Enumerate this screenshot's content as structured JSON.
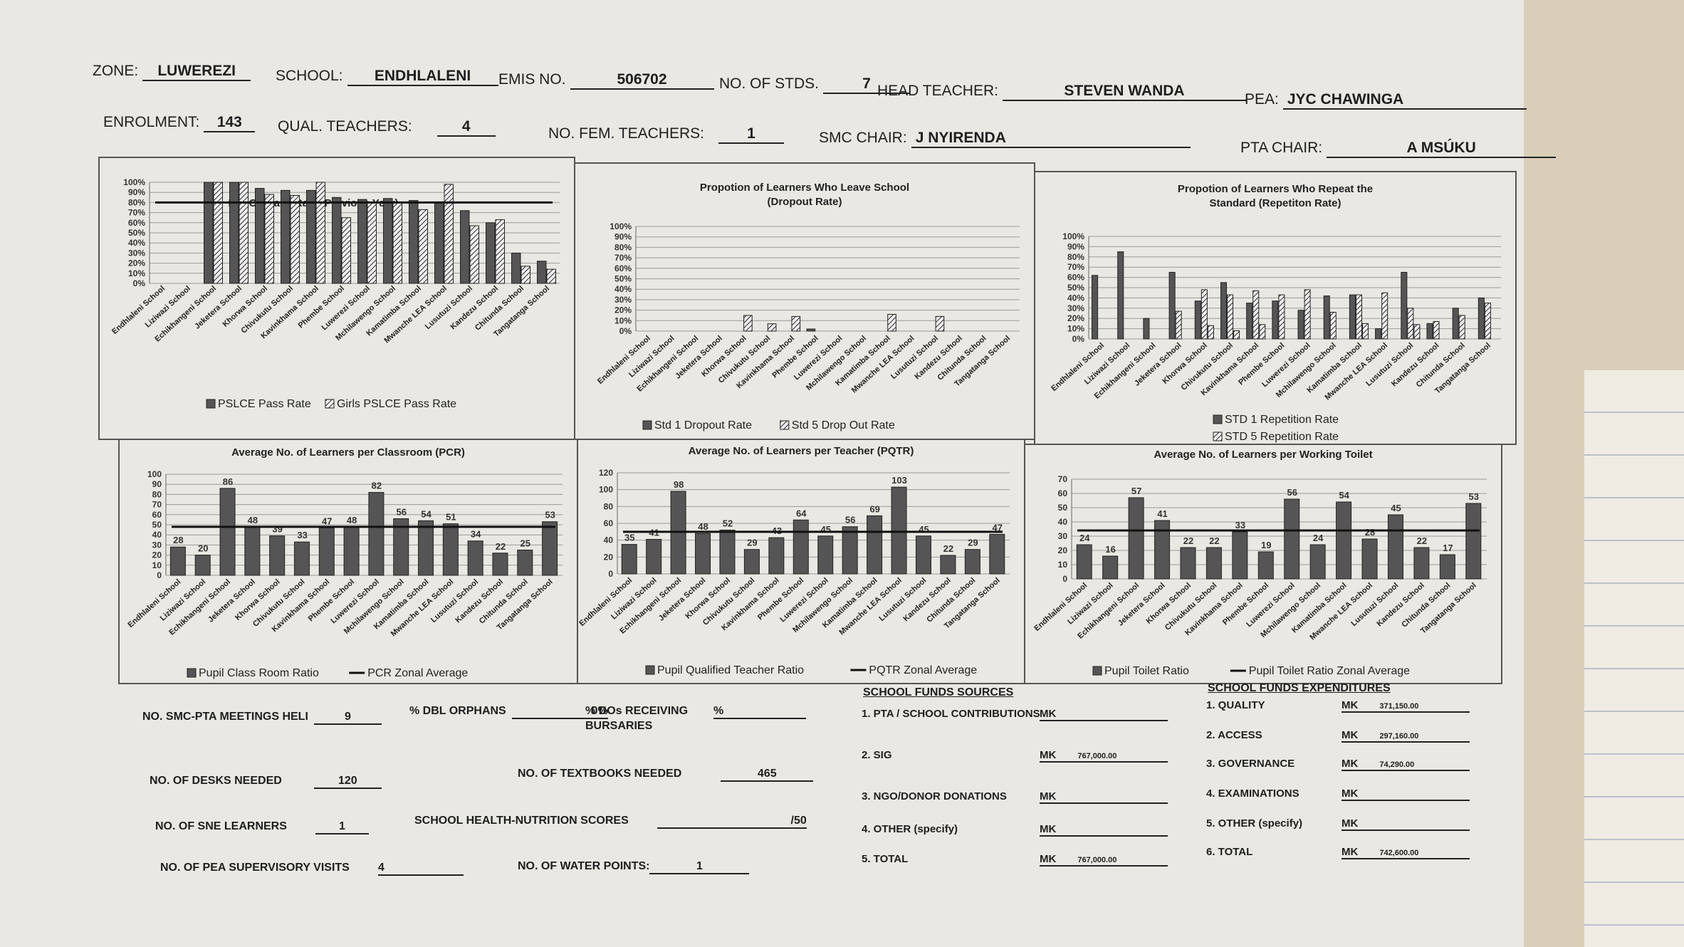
{
  "header": {
    "zone_label": "ZONE:",
    "zone": "LUWEREZI",
    "school_label": "SCHOOL:",
    "school": "ENDHLALENI",
    "emis_label": "EMIS NO.",
    "emis": "506702",
    "stds_label": "NO. OF STDS.",
    "stds": "7",
    "head_label": "HEAD TEACHER:",
    "head": "STEVEN WANDA",
    "pea_label": "PEA:",
    "pea": "JYC CHAWINGA",
    "enrol_label": "ENROLMENT:",
    "enrol": "143",
    "qual_label": "QUAL. TEACHERS:",
    "qual": "4",
    "fem_label": "NO. FEM. TEACHERS:",
    "fem": "1",
    "smc_label": "SMC CHAIR:",
    "smc": "J NYIRENDA",
    "pta_label": "PTA CHAIR:",
    "pta": "A MSÚKU"
  },
  "schools": [
    "Endhlaleni School",
    "Liziwazi School",
    "Echikhangeni School",
    "Jeketera School",
    "Khorwa School",
    "Chivukutu School",
    "Kavinkhama School",
    "Phembe School",
    "Luwerezi School",
    "Mchilawengo School",
    "Kamatimba School",
    "Mwanche LEA School",
    "Lusutuzi School",
    "Kandezu School",
    "Chitunda School",
    "Tangatanga School"
  ],
  "chart_data": [
    {
      "type": "bar",
      "title": "PSLCE Pass Rate (Previous Year)",
      "ylim": [
        0,
        100
      ],
      "yticks": [
        "0%",
        "10%",
        "20%",
        "30%",
        "40%",
        "50%",
        "60%",
        "70%",
        "80%",
        "90%",
        "100%"
      ],
      "series": [
        {
          "name": "PSLCE Pass Rate",
          "values": [
            null,
            null,
            100,
            100,
            94,
            92,
            92,
            85,
            83,
            84,
            82,
            80,
            72,
            60,
            30,
            22
          ]
        },
        {
          "name": "Girls PSLCE Pass Rate",
          "values": [
            null,
            null,
            100,
            100,
            88,
            87,
            100,
            65,
            80,
            80,
            73,
            98,
            57,
            63,
            17,
            14
          ]
        }
      ],
      "avg_line": 80,
      "legend": "bottom"
    },
    {
      "type": "bar",
      "title": "Propotion of Learners Who Leave School",
      "subtitle": "(Dropout Rate)",
      "ylim": [
        0,
        100
      ],
      "yticks": [
        "0%",
        "10%",
        "20%",
        "30%",
        "40%",
        "50%",
        "60%",
        "70%",
        "80%",
        "90%",
        "100%"
      ],
      "series": [
        {
          "name": "Std 1 Dropout Rate",
          "values": [
            0,
            0,
            0,
            0,
            0,
            0,
            0,
            2,
            0,
            0,
            0,
            0,
            0,
            0,
            0,
            0
          ]
        },
        {
          "name": "Std 5 Drop Out Rate",
          "values": [
            0,
            0,
            0,
            0,
            15,
            7,
            14,
            0,
            0,
            0,
            16,
            0,
            14,
            0,
            0,
            0
          ]
        }
      ],
      "legend": "bottom"
    },
    {
      "type": "bar",
      "title": "Propotion of Learners Who Repeat  the",
      "subtitle": "Standard (Repetiton Rate)",
      "ylim": [
        0,
        100
      ],
      "yticks": [
        "0%",
        "10%",
        "20%",
        "30%",
        "40%",
        "50%",
        "60%",
        "70%",
        "80%",
        "90%",
        "100%"
      ],
      "series": [
        {
          "name": "STD 1 Repetition Rate",
          "values": [
            62,
            85,
            20,
            65,
            37,
            55,
            35,
            37,
            28,
            42,
            43,
            10,
            65,
            15,
            30,
            40
          ]
        },
        {
          "name": "STD 5 Repetition Rate",
          "values": [
            0,
            0,
            0,
            27,
            48,
            43,
            47,
            43,
            48,
            26,
            43,
            45,
            30,
            17,
            23,
            35
          ]
        },
        {
          "name": "",
          "values": [
            0,
            0,
            0,
            0,
            13,
            8,
            14,
            0,
            0,
            0,
            15,
            0,
            14,
            0,
            0,
            0
          ]
        }
      ],
      "legend": "bottom"
    },
    {
      "type": "bar",
      "title": "Average No. of Learners per Classroom (PCR)",
      "ylim": [
        0,
        100
      ],
      "yticks": [
        "0",
        "10",
        "20",
        "30",
        "40",
        "50",
        "60",
        "70",
        "80",
        "90",
        "100"
      ],
      "series": [
        {
          "name": "Pupil Class Room Ratio",
          "values": [
            28,
            20,
            86,
            48,
            39,
            33,
            47,
            48,
            82,
            56,
            54,
            51,
            34,
            22,
            25,
            53
          ]
        }
      ],
      "avg_line": 48,
      "avg_name": "PCR Zonal Average",
      "legend": "bottom"
    },
    {
      "type": "bar",
      "title": "Average No. of Learners per Teacher (PQTR)",
      "ylim": [
        0,
        120
      ],
      "yticks": [
        "0",
        "20",
        "40",
        "60",
        "80",
        "100",
        "120"
      ],
      "series": [
        {
          "name": "Pupil Qualified Teacher Ratio",
          "values": [
            35,
            41,
            98,
            48,
            52,
            29,
            43,
            64,
            45,
            56,
            69,
            103,
            45,
            22,
            29,
            47
          ]
        }
      ],
      "avg_line": 50,
      "avg_name": "PQTR Zonal Average",
      "legend": "bottom"
    },
    {
      "type": "bar",
      "title": "Average No. of Learners per Working Toilet",
      "ylim": [
        0,
        70
      ],
      "yticks": [
        "0",
        "10",
        "20",
        "30",
        "40",
        "50",
        "60",
        "70"
      ],
      "series": [
        {
          "name": "Pupil Toilet Ratio",
          "values": [
            24,
            16,
            57,
            41,
            22,
            22,
            33,
            19,
            56,
            24,
            54,
            28,
            45,
            22,
            17,
            53
          ]
        }
      ],
      "avg_line": 34,
      "avg_name": "Pupil Toilet Ratio Zonal Average",
      "legend": "bottom"
    }
  ],
  "bottom": {
    "meetings_label": "NO. SMC-PTA MEETINGS HELI",
    "meetings": "9",
    "orphans_label": "% DBL ORPHANS",
    "orphans": "0%",
    "dos_label1": "% DOs RECEIVING",
    "dos_label2": "BURSARIES",
    "dos": "%",
    "desks_label": "NO. OF DESKS NEEDED",
    "desks": "120",
    "textbooks_label": "NO. OF TEXTBOOKS NEEDED",
    "textbooks": "465",
    "sne_label": "NO. OF SNE LEARNERS",
    "sne": "1",
    "health_label": "SCHOOL HEALTH-NUTRITION SCORES",
    "health": "/50",
    "visits_label": "NO. OF PEA SUPERVISORY VISITS",
    "visits": "4",
    "water_label": "NO. OF WATER POINTS:",
    "water": "1"
  },
  "funds_sources": {
    "title": "SCHOOL FUNDS SOURCES",
    "items": [
      {
        "label": "1. PTA / SCHOOL CONTRIBUTIONS",
        "mk": "MK",
        "amount": ""
      },
      {
        "label": "2. SIG",
        "mk": "MK",
        "amount": "767,000.00"
      },
      {
        "label": "3. NGO/DONOR DONATIONS",
        "mk": "MK",
        "amount": ""
      },
      {
        "label": "4. OTHER (specify)",
        "mk": "MK",
        "amount": ""
      },
      {
        "label": "5. TOTAL",
        "mk": "MK",
        "amount": "767,000.00"
      }
    ]
  },
  "funds_expend": {
    "title": "SCHOOL FUNDS EXPENDITURES",
    "items": [
      {
        "label": "1. QUALITY",
        "mk": "MK",
        "amount": "371,150.00"
      },
      {
        "label": "2. ACCESS",
        "mk": "MK",
        "amount": "297,160.00"
      },
      {
        "label": "3. GOVERNANCE",
        "mk": "MK",
        "amount": "74,290.00"
      },
      {
        "label": "4. EXAMINATIONS",
        "mk": "MK",
        "amount": ""
      },
      {
        "label": "5. OTHER (specify)",
        "mk": "MK",
        "amount": ""
      },
      {
        "label": "6. TOTAL",
        "mk": "MK",
        "amount": "742,600.00"
      }
    ]
  },
  "colors": {
    "bar": "#555555",
    "hatch": "#2b2b2b",
    "grid": "#9a9a9a",
    "avg": "#111111"
  }
}
